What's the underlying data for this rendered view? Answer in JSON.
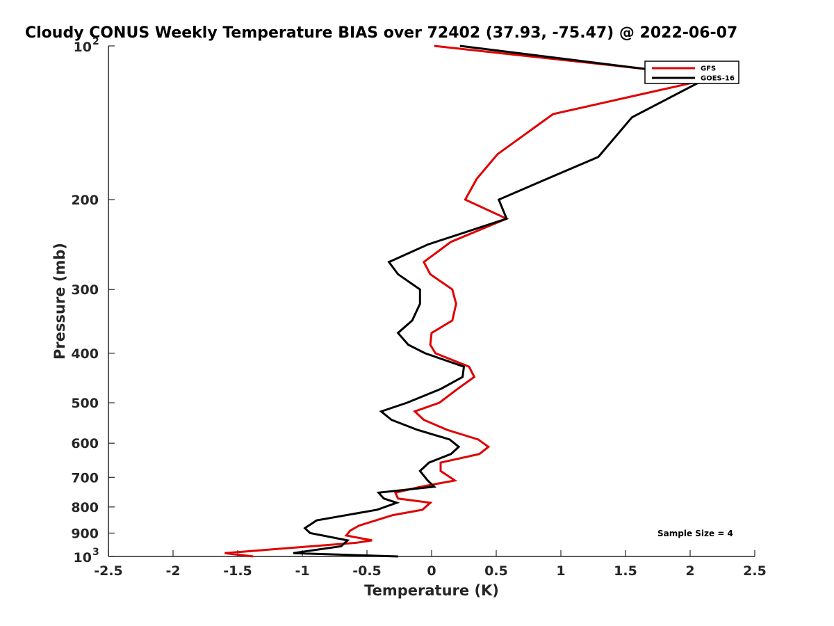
{
  "chart_data": {
    "type": "line",
    "title": "Cloudy CONUS Weekly Temperature BIAS over 72402 (37.93, -75.47) @ 2022-06-07",
    "xlabel": "Temperature (K)",
    "ylabel": "Pressure (mb)",
    "xlim": [
      -2.5,
      2.5
    ],
    "ylim": [
      100,
      1000
    ],
    "y_scale": "log",
    "y_reversed": true,
    "xticks": [
      -2.5,
      -2,
      -1.5,
      -1,
      -0.5,
      0,
      0.5,
      1,
      1.5,
      2,
      2.5
    ],
    "xtick_labels": [
      "-2.5",
      "-2",
      "-1.5",
      "-1",
      "-0.5",
      "0",
      "0.5",
      "1",
      "1.5",
      "2",
      "2.5"
    ],
    "yticks": [
      {
        "value": 100,
        "base": "10",
        "exp": "2"
      },
      {
        "value": 200,
        "label": "200"
      },
      {
        "value": 300,
        "label": "300"
      },
      {
        "value": 400,
        "label": "400"
      },
      {
        "value": 500,
        "label": "500"
      },
      {
        "value": 600,
        "label": "600"
      },
      {
        "value": 700,
        "label": "700"
      },
      {
        "value": 800,
        "label": "800"
      },
      {
        "value": 900,
        "label": "900"
      },
      {
        "value": 1000,
        "base": "10",
        "exp": "3"
      }
    ],
    "grid": false,
    "legend_position": "top-right",
    "annotation": "Sample Size = 4",
    "series": [
      {
        "name": "GFS",
        "color": "#e00000",
        "points": [
          [
            0.02,
            100
          ],
          [
            2.22,
            115
          ],
          [
            0.94,
            136
          ],
          [
            0.51,
            163
          ],
          [
            0.35,
            182
          ],
          [
            0.26,
            200
          ],
          [
            0.58,
            218
          ],
          [
            0.15,
            242
          ],
          [
            -0.06,
            265
          ],
          [
            -0.01,
            280
          ],
          [
            0.16,
            300
          ],
          [
            0.19,
            320
          ],
          [
            0.16,
            345
          ],
          [
            0.0,
            365
          ],
          [
            -0.01,
            385
          ],
          [
            0.03,
            400
          ],
          [
            0.29,
            425
          ],
          [
            0.33,
            445
          ],
          [
            0.2,
            470
          ],
          [
            0.06,
            500
          ],
          [
            -0.13,
            520
          ],
          [
            -0.06,
            540
          ],
          [
            0.12,
            565
          ],
          [
            0.36,
            590
          ],
          [
            0.44,
            610
          ],
          [
            0.37,
            630
          ],
          [
            0.07,
            655
          ],
          [
            0.07,
            680
          ],
          [
            0.18,
            710
          ],
          [
            -0.08,
            730
          ],
          [
            -0.28,
            750
          ],
          [
            -0.26,
            770
          ],
          [
            -0.01,
            785
          ],
          [
            -0.07,
            810
          ],
          [
            -0.3,
            830
          ],
          [
            -0.56,
            870
          ],
          [
            -0.63,
            890
          ],
          [
            -0.66,
            910
          ],
          [
            -0.46,
            930
          ],
          [
            -0.58,
            940
          ],
          [
            -1.6,
            985
          ],
          [
            -1.38,
            1000
          ]
        ]
      },
      {
        "name": "GOES-16",
        "color": "#000000",
        "points": [
          [
            0.22,
            100
          ],
          [
            2.15,
            115
          ],
          [
            1.55,
            138
          ],
          [
            1.29,
            165
          ],
          [
            0.83,
            185
          ],
          [
            0.52,
            200
          ],
          [
            0.58,
            218
          ],
          [
            -0.03,
            245
          ],
          [
            -0.33,
            265
          ],
          [
            -0.26,
            280
          ],
          [
            -0.09,
            300
          ],
          [
            -0.09,
            320
          ],
          [
            -0.15,
            345
          ],
          [
            -0.26,
            365
          ],
          [
            -0.18,
            385
          ],
          [
            -0.05,
            400
          ],
          [
            0.25,
            425
          ],
          [
            0.24,
            445
          ],
          [
            0.07,
            470
          ],
          [
            -0.19,
            500
          ],
          [
            -0.39,
            520
          ],
          [
            -0.31,
            540
          ],
          [
            -0.11,
            565
          ],
          [
            0.14,
            590
          ],
          [
            0.21,
            610
          ],
          [
            0.15,
            630
          ],
          [
            -0.02,
            655
          ],
          [
            -0.09,
            680
          ],
          [
            -0.03,
            710
          ],
          [
            0.02,
            730
          ],
          [
            -0.41,
            750
          ],
          [
            -0.37,
            770
          ],
          [
            -0.27,
            785
          ],
          [
            -0.42,
            810
          ],
          [
            -0.89,
            850
          ],
          [
            -0.98,
            880
          ],
          [
            -0.94,
            900
          ],
          [
            -0.65,
            930
          ],
          [
            -0.7,
            955
          ],
          [
            -1.07,
            985
          ],
          [
            -0.26,
            1000
          ]
        ]
      }
    ]
  }
}
